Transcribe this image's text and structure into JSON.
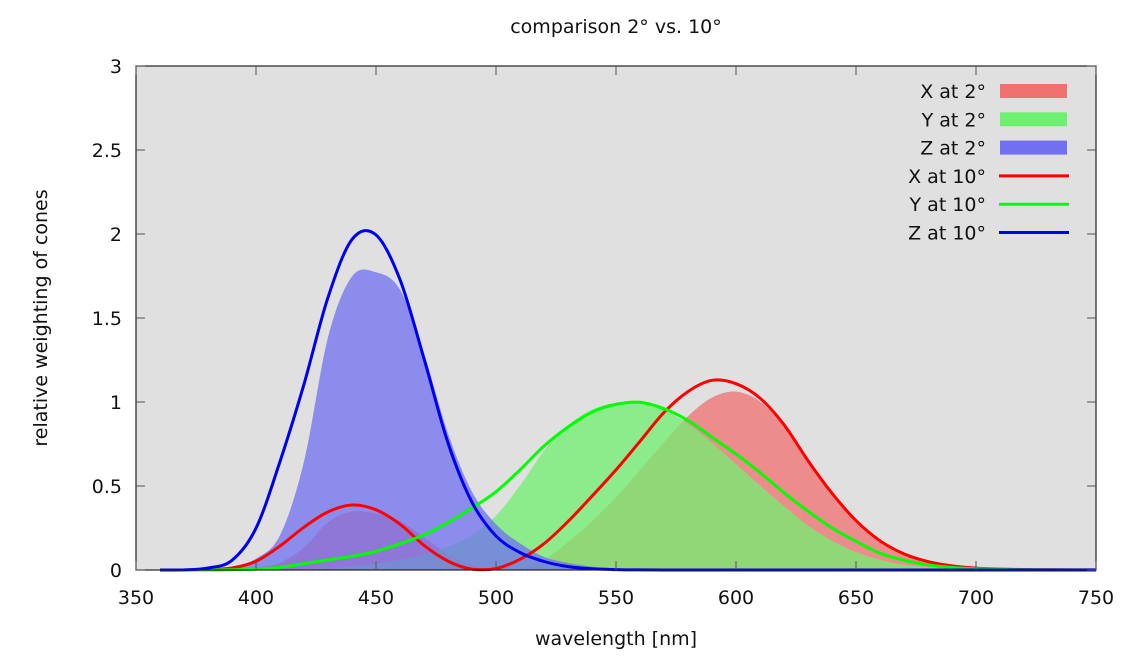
{
  "chart_data": {
    "type": "area",
    "title": "comparison 2° vs. 10°",
    "xlabel": "wavelength [nm]",
    "ylabel": "relative weighting of cones",
    "xlim": [
      350,
      750
    ],
    "ylim": [
      0,
      3
    ],
    "xticks": [
      350,
      400,
      450,
      500,
      550,
      600,
      650,
      700,
      750
    ],
    "yticks": [
      0,
      0.5,
      1,
      1.5,
      2,
      2.5,
      3
    ],
    "xtick_labels": [
      "350",
      "400",
      "450",
      "500",
      "550",
      "600",
      "650",
      "700",
      "750"
    ],
    "ytick_labels": [
      "0",
      "0.5",
      "1",
      "1.5",
      "2",
      "2.5",
      "3"
    ],
    "grid": false,
    "legend_position": "top-right",
    "plot_background": "#e0e0e0",
    "x": [
      360,
      370,
      380,
      390,
      400,
      410,
      420,
      430,
      440,
      450,
      460,
      470,
      480,
      490,
      500,
      510,
      520,
      530,
      540,
      550,
      560,
      570,
      580,
      590,
      600,
      610,
      620,
      630,
      640,
      650,
      660,
      670,
      680,
      690,
      700,
      710,
      720,
      730,
      740,
      750
    ],
    "series": [
      {
        "name": "X at 2°",
        "style": "fill",
        "color": "#f07070",
        "values": [
          0.0001,
          0.0007,
          0.0014,
          0.0042,
          0.0143,
          0.0435,
          0.1344,
          0.2839,
          0.3483,
          0.3362,
          0.2908,
          0.1954,
          0.0956,
          0.032,
          0.0049,
          0.0093,
          0.0633,
          0.1655,
          0.2904,
          0.4334,
          0.5945,
          0.7621,
          0.9163,
          1.0263,
          1.0622,
          1.0026,
          0.8544,
          0.6424,
          0.4479,
          0.2835,
          0.1649,
          0.0874,
          0.0468,
          0.0227,
          0.0114,
          0.0058,
          0.0029,
          0.0014,
          0.0007,
          0.0003
        ]
      },
      {
        "name": "Y at 2°",
        "style": "fill",
        "color": "#70f070",
        "values": [
          0.0,
          0.0,
          0.0,
          0.0001,
          0.0004,
          0.0012,
          0.004,
          0.0116,
          0.023,
          0.038,
          0.06,
          0.091,
          0.139,
          0.208,
          0.323,
          0.503,
          0.71,
          0.862,
          0.954,
          0.995,
          0.995,
          0.952,
          0.87,
          0.757,
          0.631,
          0.503,
          0.381,
          0.265,
          0.175,
          0.107,
          0.061,
          0.032,
          0.017,
          0.0082,
          0.0041,
          0.0021,
          0.001,
          0.0005,
          0.0002,
          0.0001
        ]
      },
      {
        "name": "Z at 2°",
        "style": "fill",
        "color": "#7070f0",
        "values": [
          0.0006,
          0.0032,
          0.0065,
          0.0201,
          0.0679,
          0.2074,
          0.6456,
          1.3856,
          1.7471,
          1.7721,
          1.6692,
          1.2876,
          0.813,
          0.4652,
          0.272,
          0.1582,
          0.0782,
          0.0422,
          0.0203,
          0.0087,
          0.0039,
          0.0021,
          0.0017,
          0.0011,
          0.0008,
          0.0003,
          0.0002,
          0.0,
          0.0,
          0.0,
          0.0,
          0.0,
          0.0,
          0.0,
          0.0,
          0.0,
          0.0,
          0.0,
          0.0,
          0.0
        ]
      },
      {
        "name": "X at 10°",
        "style": "line",
        "color": "#ff0000",
        "values": [
          0.0,
          0.0001,
          0.0022,
          0.0121,
          0.0519,
          0.1429,
          0.2548,
          0.3461,
          0.387,
          0.3582,
          0.2726,
          0.1468,
          0.0529,
          0.0045,
          0.0085,
          0.0637,
          0.1566,
          0.2884,
          0.4394,
          0.5961,
          0.766,
          0.938,
          1.062,
          1.129,
          1.109,
          1.023,
          0.865,
          0.651,
          0.457,
          0.294,
          0.174,
          0.096,
          0.05,
          0.0244,
          0.0116,
          0.0055,
          0.0026,
          0.0012,
          0.0006,
          0.0003
        ]
      },
      {
        "name": "Y at 10°",
        "style": "line",
        "color": "#00ff00",
        "values": [
          0.0,
          0.0,
          0.0002,
          0.0013,
          0.0053,
          0.0153,
          0.0381,
          0.0599,
          0.082,
          0.111,
          0.156,
          0.209,
          0.282,
          0.369,
          0.466,
          0.596,
          0.738,
          0.851,
          0.94,
          0.986,
          0.998,
          0.96,
          0.89,
          0.79,
          0.69,
          0.58,
          0.46,
          0.35,
          0.25,
          0.17,
          0.1,
          0.058,
          0.031,
          0.015,
          0.0072,
          0.0035,
          0.0017,
          0.0008,
          0.0004,
          0.0002
        ]
      },
      {
        "name": "Z at 10°",
        "style": "line",
        "color": "#0000ee",
        "values": [
          0.0,
          0.0005,
          0.0117,
          0.0577,
          0.2487,
          0.6458,
          1.1058,
          1.6226,
          1.9677,
          1.9945,
          1.7286,
          1.2581,
          0.7565,
          0.4028,
          0.2025,
          0.1044,
          0.0508,
          0.0202,
          0.0071,
          0.0025,
          0.0004,
          0.0,
          0.0,
          0.0,
          0.0,
          0.0,
          0.0,
          0.0,
          0.0,
          0.0,
          0.0,
          0.0,
          0.0,
          0.0,
          0.0,
          0.0,
          0.0,
          0.0,
          0.0,
          0.0
        ]
      }
    ]
  }
}
